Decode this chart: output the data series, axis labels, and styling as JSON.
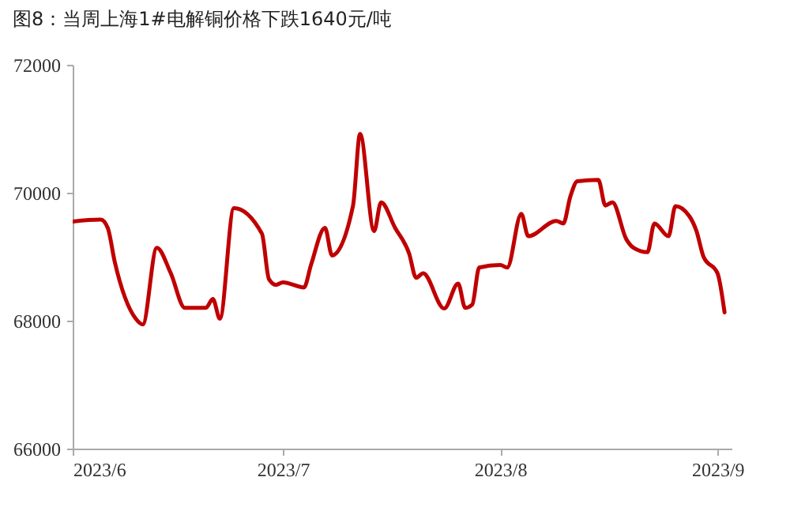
{
  "chart_data": {
    "type": "line",
    "title": "图8：当周上海1#电解铜价格下跌1640元/吨",
    "x": [
      "2023-06-01",
      "2023-06-05",
      "2023-06-06",
      "2023-06-07",
      "2023-06-10",
      "2023-06-11",
      "2023-06-13",
      "2023-06-15",
      "2023-06-17",
      "2023-06-20",
      "2023-06-21",
      "2023-06-22",
      "2023-06-24",
      "2023-06-28",
      "2023-06-29",
      "2023-06-30",
      "2023-07-01",
      "2023-07-04",
      "2023-07-05",
      "2023-07-07",
      "2023-07-08",
      "2023-07-11",
      "2023-07-12",
      "2023-07-14",
      "2023-07-15",
      "2023-07-17",
      "2023-07-19",
      "2023-07-20",
      "2023-07-21",
      "2023-07-24",
      "2023-07-26",
      "2023-07-27",
      "2023-07-28",
      "2023-07-29",
      "2023-08-01",
      "2023-08-02",
      "2023-08-04",
      "2023-08-05",
      "2023-08-09",
      "2023-08-10",
      "2023-08-11",
      "2023-08-12",
      "2023-08-15",
      "2023-08-16",
      "2023-08-17",
      "2023-08-19",
      "2023-08-20",
      "2023-08-22",
      "2023-08-23",
      "2023-08-25",
      "2023-08-26",
      "2023-08-28",
      "2023-08-29",
      "2023-08-30",
      "2023-09-01",
      "2023-09-02"
    ],
    "series": [
      {
        "color": "#c00000",
        "values": [
          69550,
          69580,
          69450,
          68920,
          68030,
          67940,
          69140,
          68740,
          68200,
          68200,
          68340,
          68030,
          69760,
          69360,
          68650,
          68560,
          68600,
          68520,
          68870,
          69450,
          69020,
          69800,
          70920,
          69400,
          69850,
          69450,
          69050,
          68670,
          68740,
          68190,
          68580,
          68200,
          68250,
          68830,
          68870,
          68830,
          69670,
          69320,
          69560,
          69520,
          69940,
          70180,
          70200,
          69800,
          69850,
          69270,
          69140,
          69070,
          69520,
          69320,
          69790,
          69630,
          69400,
          69000,
          68740,
          68130
        ]
      }
    ],
    "xlim": [
      "2023-06-01",
      "2023-09-03"
    ],
    "xticks": [
      {
        "value": "2023-06-01",
        "label": "2023/6"
      },
      {
        "value": "2023-07-01",
        "label": "2023/7"
      },
      {
        "value": "2023-08-01",
        "label": "2023/8"
      },
      {
        "value": "2023-09-01",
        "label": "2023/9"
      }
    ],
    "ylim": [
      66000,
      72000
    ],
    "yticks": [
      66000,
      68000,
      70000,
      72000
    ],
    "grid": false,
    "marker": "none",
    "line_style": "solid"
  }
}
